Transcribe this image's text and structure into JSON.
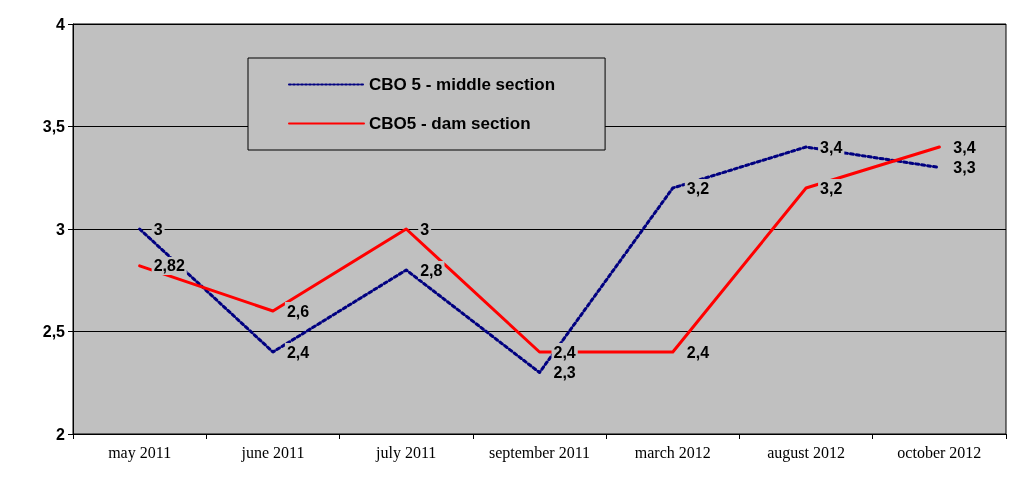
{
  "chart_data": {
    "type": "line",
    "categories": [
      "may 2011",
      "june 2011",
      "july 2011",
      "september 2011",
      "march 2012",
      "august 2012",
      "october 2012"
    ],
    "series": [
      {
        "name": "CBO 5 - middle section",
        "color": "#000080",
        "line_style": "dotted",
        "values": [
          3,
          2.4,
          2.8,
          2.3,
          3.2,
          3.4,
          3.3
        ],
        "value_labels": [
          "3",
          "2,4",
          "2,8",
          "2,3",
          "3,2",
          "3,4",
          "3,3"
        ]
      },
      {
        "name": "CBO5 - dam section",
        "color": "#ff0000",
        "line_style": "solid",
        "values": [
          2.82,
          2.6,
          3,
          2.4,
          2.4,
          3.2,
          3.4
        ],
        "value_labels": [
          "2,82",
          "2,6",
          "3",
          "2,4",
          "2,4",
          "3,2",
          "3,4"
        ]
      }
    ],
    "ylim": [
      2,
      4
    ],
    "yticks": [
      2,
      {
        "value": 2.5,
        "label": "2,5"
      },
      3,
      {
        "value": 3.5,
        "label": "3,5"
      },
      4
    ],
    "grid": "y",
    "legend": "top",
    "marker": "none"
  }
}
